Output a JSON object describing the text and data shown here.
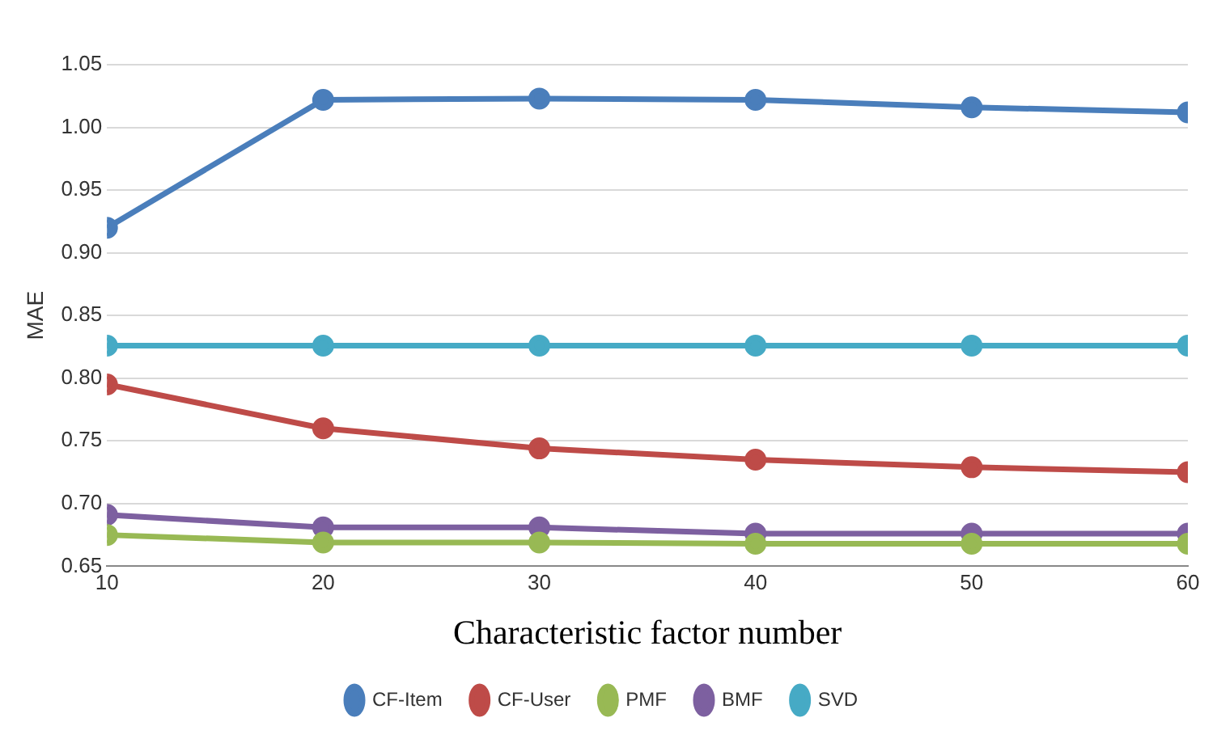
{
  "chart_data": {
    "type": "line",
    "xlabel": "Characteristic factor number",
    "ylabel": "MAE",
    "x": [
      10,
      20,
      30,
      40,
      50,
      60
    ],
    "series": [
      {
        "name": "CF-Item",
        "color": "#4a7ebb",
        "values": [
          0.92,
          1.022,
          1.023,
          1.022,
          1.016,
          1.012
        ]
      },
      {
        "name": "CF-User",
        "color": "#be4b48",
        "values": [
          0.795,
          0.76,
          0.744,
          0.735,
          0.729,
          0.725
        ]
      },
      {
        "name": "PMF",
        "color": "#98b954",
        "values": [
          0.675,
          0.669,
          0.669,
          0.668,
          0.668,
          0.668
        ]
      },
      {
        "name": "BMF",
        "color": "#7d60a0",
        "values": [
          0.691,
          0.681,
          0.681,
          0.676,
          0.676,
          0.676
        ]
      },
      {
        "name": "SVD",
        "color": "#46aac5",
        "values": [
          0.826,
          0.826,
          0.826,
          0.826,
          0.826,
          0.826
        ]
      }
    ],
    "xlim": [
      10,
      60
    ],
    "xticks": [
      10,
      20,
      30,
      40,
      50,
      60
    ],
    "ylim": [
      0.65,
      1.05
    ],
    "yticks": [
      {
        "value": 0.65,
        "label": "0.65"
      },
      {
        "value": 0.7,
        "label": "0.70"
      },
      {
        "value": 0.75,
        "label": "0.75"
      },
      {
        "value": 0.8,
        "label": "0.80"
      },
      {
        "value": 0.85,
        "label": "0.85"
      },
      {
        "value": 0.9,
        "label": "0.90"
      },
      {
        "value": 0.95,
        "label": "0.95"
      },
      {
        "value": 1,
        "label": "1.00"
      },
      {
        "value": 1.05,
        "label": "1.05"
      }
    ],
    "grid": "y",
    "legend": "bottom",
    "marker": "circle",
    "line_style": "solid"
  }
}
